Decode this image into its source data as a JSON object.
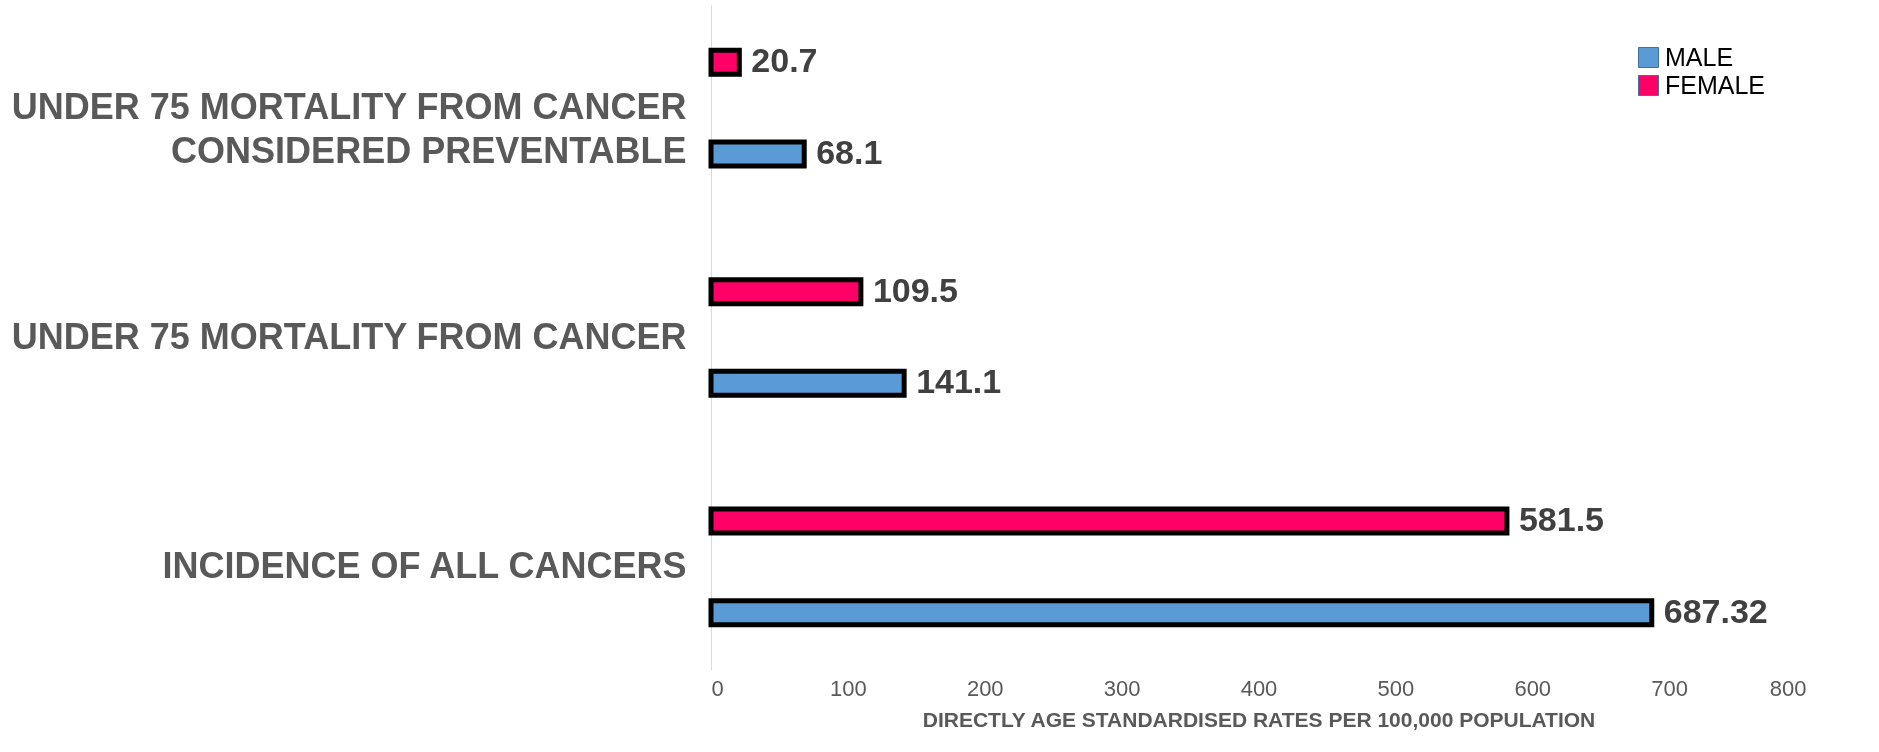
{
  "chart_data": {
    "type": "bar",
    "orientation": "horizontal",
    "xlabel": "DIRECTLY AGE STANDARDISED RATES PER 100,000 POPULATION",
    "categories": [
      "UNDER 75 MORTALITY FROM CANCER CONSIDERED PREVENTABLE",
      "UNDER 75 MORTALITY FROM CANCER",
      "INCIDENCE OF ALL CANCERS"
    ],
    "series": [
      {
        "name": "MALE",
        "color": "#5b9bd5",
        "values": [
          68.1,
          141.1,
          687.32
        ]
      },
      {
        "name": "FEMALE",
        "color": "#ff0066",
        "values": [
          20.7,
          109.5,
          581.5
        ]
      }
    ],
    "xlim": [
      0,
      800
    ],
    "xticks": [
      0,
      100,
      200,
      300,
      400,
      500,
      600,
      700,
      800
    ],
    "data_labels": true,
    "legend": "top right",
    "grid": false
  }
}
